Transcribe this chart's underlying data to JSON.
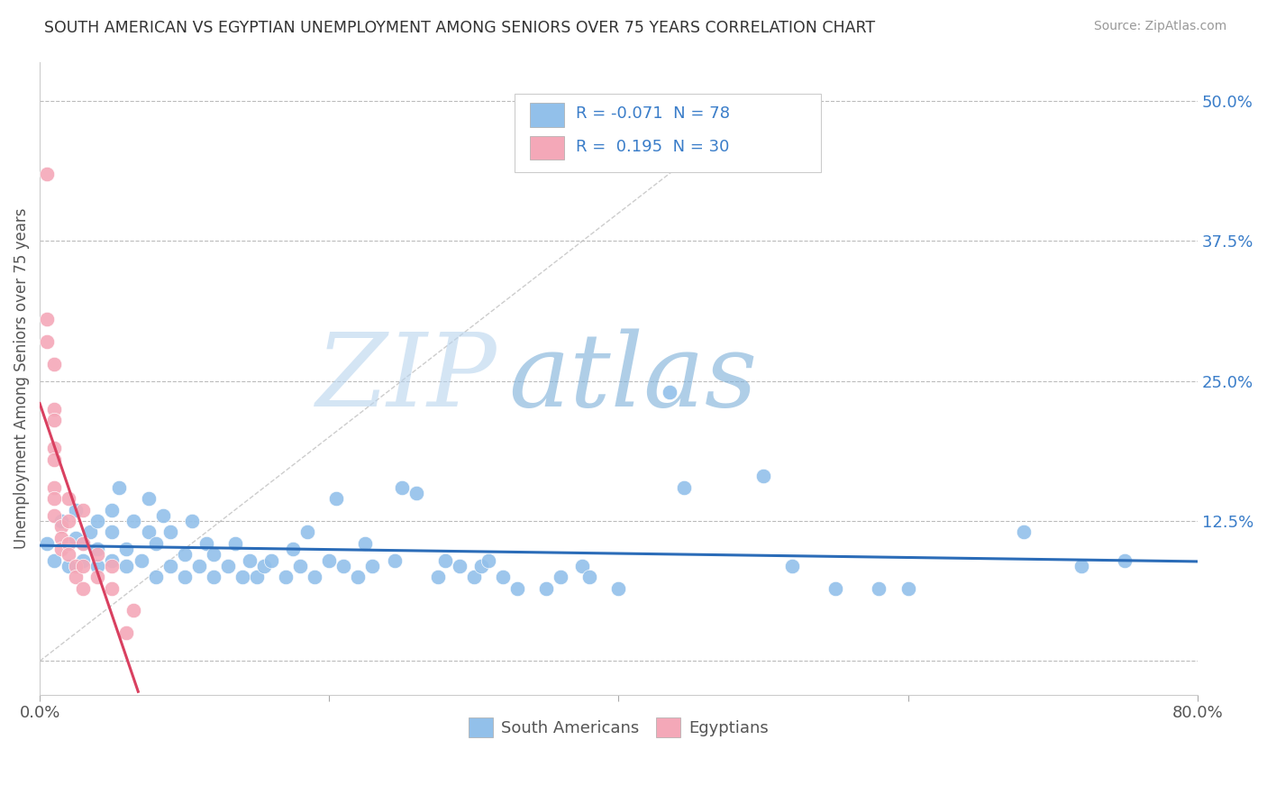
{
  "title": "SOUTH AMERICAN VS EGYPTIAN UNEMPLOYMENT AMONG SENIORS OVER 75 YEARS CORRELATION CHART",
  "source": "Source: ZipAtlas.com",
  "ylabel": "Unemployment Among Seniors over 75 years",
  "xlim": [
    0.0,
    0.8
  ],
  "ylim": [
    -0.03,
    0.535
  ],
  "xticks": [
    0.0,
    0.2,
    0.4,
    0.6,
    0.8
  ],
  "xticklabels": [
    "0.0%",
    "",
    "",
    "",
    "80.0%"
  ],
  "yticks_right": [
    0.0,
    0.125,
    0.25,
    0.375,
    0.5
  ],
  "yticklabels_right": [
    "",
    "12.5%",
    "25.0%",
    "37.5%",
    "50.0%"
  ],
  "blue_R": -0.071,
  "blue_N": 78,
  "pink_R": 0.195,
  "pink_N": 30,
  "blue_color": "#92C0EA",
  "pink_color": "#F4A8B8",
  "blue_line_color": "#2B6CB8",
  "pink_line_color": "#D94060",
  "diag_line_color": "#C0C0C0",
  "blue_points": [
    [
      0.005,
      0.105
    ],
    [
      0.01,
      0.09
    ],
    [
      0.015,
      0.125
    ],
    [
      0.02,
      0.085
    ],
    [
      0.025,
      0.11
    ],
    [
      0.025,
      0.135
    ],
    [
      0.03,
      0.09
    ],
    [
      0.03,
      0.105
    ],
    [
      0.035,
      0.115
    ],
    [
      0.04,
      0.085
    ],
    [
      0.04,
      0.1
    ],
    [
      0.04,
      0.125
    ],
    [
      0.05,
      0.09
    ],
    [
      0.05,
      0.115
    ],
    [
      0.05,
      0.135
    ],
    [
      0.055,
      0.155
    ],
    [
      0.06,
      0.085
    ],
    [
      0.06,
      0.1
    ],
    [
      0.065,
      0.125
    ],
    [
      0.07,
      0.09
    ],
    [
      0.075,
      0.115
    ],
    [
      0.075,
      0.145
    ],
    [
      0.08,
      0.075
    ],
    [
      0.08,
      0.105
    ],
    [
      0.085,
      0.13
    ],
    [
      0.09,
      0.085
    ],
    [
      0.09,
      0.115
    ],
    [
      0.1,
      0.075
    ],
    [
      0.1,
      0.095
    ],
    [
      0.105,
      0.125
    ],
    [
      0.11,
      0.085
    ],
    [
      0.115,
      0.105
    ],
    [
      0.12,
      0.075
    ],
    [
      0.12,
      0.095
    ],
    [
      0.13,
      0.085
    ],
    [
      0.135,
      0.105
    ],
    [
      0.14,
      0.075
    ],
    [
      0.145,
      0.09
    ],
    [
      0.15,
      0.075
    ],
    [
      0.155,
      0.085
    ],
    [
      0.16,
      0.09
    ],
    [
      0.17,
      0.075
    ],
    [
      0.175,
      0.1
    ],
    [
      0.18,
      0.085
    ],
    [
      0.185,
      0.115
    ],
    [
      0.19,
      0.075
    ],
    [
      0.2,
      0.09
    ],
    [
      0.205,
      0.145
    ],
    [
      0.21,
      0.085
    ],
    [
      0.22,
      0.075
    ],
    [
      0.225,
      0.105
    ],
    [
      0.23,
      0.085
    ],
    [
      0.245,
      0.09
    ],
    [
      0.25,
      0.155
    ],
    [
      0.26,
      0.15
    ],
    [
      0.275,
      0.075
    ],
    [
      0.28,
      0.09
    ],
    [
      0.29,
      0.085
    ],
    [
      0.3,
      0.075
    ],
    [
      0.305,
      0.085
    ],
    [
      0.31,
      0.09
    ],
    [
      0.32,
      0.075
    ],
    [
      0.33,
      0.065
    ],
    [
      0.35,
      0.065
    ],
    [
      0.36,
      0.075
    ],
    [
      0.375,
      0.085
    ],
    [
      0.38,
      0.075
    ],
    [
      0.4,
      0.065
    ],
    [
      0.435,
      0.24
    ],
    [
      0.445,
      0.155
    ],
    [
      0.5,
      0.165
    ],
    [
      0.52,
      0.085
    ],
    [
      0.55,
      0.065
    ],
    [
      0.58,
      0.065
    ],
    [
      0.6,
      0.065
    ],
    [
      0.68,
      0.115
    ],
    [
      0.72,
      0.085
    ],
    [
      0.75,
      0.09
    ]
  ],
  "pink_points": [
    [
      0.005,
      0.435
    ],
    [
      0.005,
      0.305
    ],
    [
      0.005,
      0.285
    ],
    [
      0.01,
      0.265
    ],
    [
      0.01,
      0.225
    ],
    [
      0.01,
      0.215
    ],
    [
      0.01,
      0.19
    ],
    [
      0.01,
      0.18
    ],
    [
      0.01,
      0.155
    ],
    [
      0.01,
      0.145
    ],
    [
      0.01,
      0.13
    ],
    [
      0.015,
      0.12
    ],
    [
      0.015,
      0.11
    ],
    [
      0.015,
      0.1
    ],
    [
      0.02,
      0.145
    ],
    [
      0.02,
      0.125
    ],
    [
      0.02,
      0.105
    ],
    [
      0.02,
      0.095
    ],
    [
      0.025,
      0.085
    ],
    [
      0.025,
      0.075
    ],
    [
      0.03,
      0.135
    ],
    [
      0.03,
      0.105
    ],
    [
      0.03,
      0.085
    ],
    [
      0.03,
      0.065
    ],
    [
      0.04,
      0.095
    ],
    [
      0.04,
      0.075
    ],
    [
      0.05,
      0.085
    ],
    [
      0.05,
      0.065
    ],
    [
      0.06,
      0.025
    ],
    [
      0.065,
      0.045
    ]
  ]
}
